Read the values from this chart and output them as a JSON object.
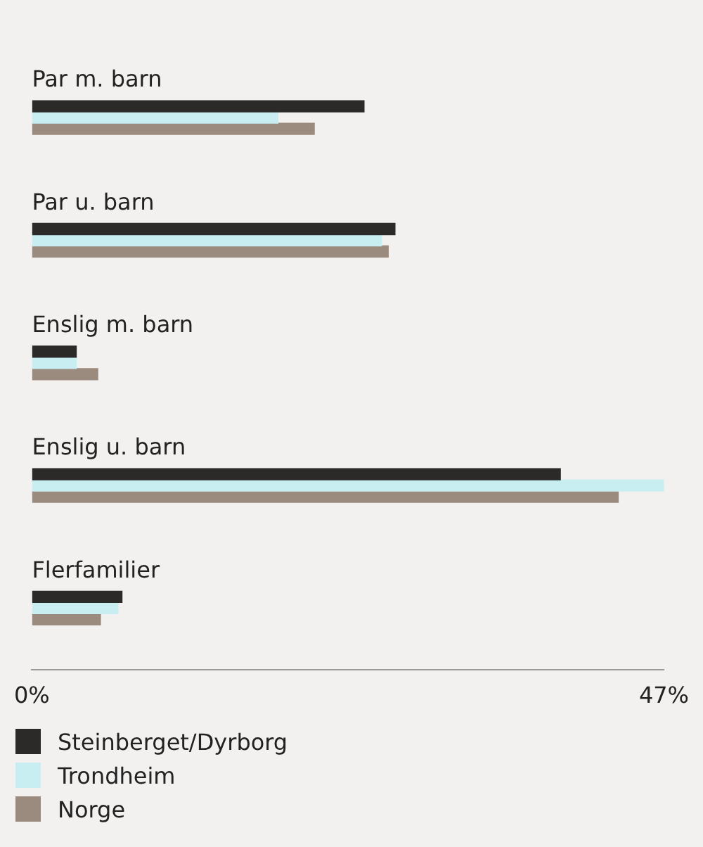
{
  "chart_data": {
    "type": "bar",
    "orientation": "horizontal",
    "categories": [
      "Par m. barn",
      "Par u. barn",
      "Enslig m. barn",
      "Enslig u. barn",
      "Flerfamilier"
    ],
    "series": [
      {
        "name": "Steinberget/Dyrborg",
        "color": "#2b2a28",
        "values": [
          24.7,
          27.0,
          3.3,
          39.3,
          6.7
        ]
      },
      {
        "name": "Trondheim",
        "color": "#c8eef2",
        "values": [
          18.3,
          26.0,
          3.3,
          47.0,
          6.4
        ]
      },
      {
        "name": "Norge",
        "color": "#9b8a7e",
        "values": [
          21.0,
          26.5,
          4.9,
          43.6,
          5.1
        ]
      }
    ],
    "xlim": [
      0,
      47
    ],
    "xticks": [
      {
        "value": 0,
        "label": "0%"
      },
      {
        "value": 47,
        "label": "47%"
      }
    ],
    "grid": false,
    "legend": "bottom"
  }
}
